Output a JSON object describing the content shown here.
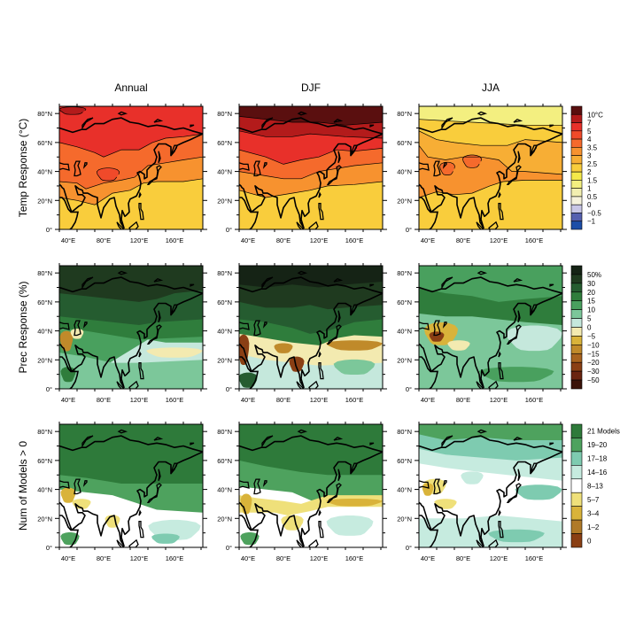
{
  "columns": [
    "Annual",
    "DJF",
    "JJA"
  ],
  "rows": [
    {
      "label": "Temp Response (°C)",
      "colorbar": {
        "labels": [
          "10°C",
          "7",
          "5",
          "4",
          "3.5",
          "3",
          "2.5",
          "2",
          "1.5",
          "1",
          "0.5",
          "0",
          "−0.5",
          "−1"
        ],
        "colors": [
          "#5a0f0f",
          "#b31b1b",
          "#e8302a",
          "#f04a2a",
          "#f56a2c",
          "#f7922f",
          "#f7ae35",
          "#f9cd3c",
          "#f5e94a",
          "#f3ef80",
          "#f2efb0",
          "#f5f2dc",
          "#c8c6e6",
          "#5560b0",
          "#1c4ea8"
        ]
      }
    },
    {
      "label": "Prec Response (%)",
      "colorbar": {
        "labels": [
          "50%",
          "30",
          "20",
          "15",
          "10",
          "5",
          "0",
          "−5",
          "−10",
          "−15",
          "−20",
          "−30",
          "−50"
        ],
        "colors": [
          "#152315",
          "#1f3a1f",
          "#255c30",
          "#2f7d3c",
          "#49a05e",
          "#7cc79a",
          "#c5e8dc",
          "#f3eab0",
          "#d9b33a",
          "#c08a2a",
          "#a8631e",
          "#8a3f14",
          "#6a2510",
          "#3a1208"
        ]
      }
    },
    {
      "label": "Num of Models > 0",
      "colorbar": {
        "labels": [
          "21 Models",
          "19–20",
          "17–18",
          "14–16",
          "8–13",
          "5–7",
          "3–4",
          "1–2",
          "0"
        ],
        "colors": [
          "#2e7a3a",
          "#4ea25e",
          "#7ecbb0",
          "#c6ebdf",
          "#ffffff",
          "#efe07a",
          "#d9b33a",
          "#b07a28",
          "#8a3f14"
        ]
      }
    }
  ],
  "lat_ticks": [
    "0°",
    "20°N",
    "40°N",
    "60°N",
    "80°N"
  ],
  "lat_values": [
    0,
    20,
    40,
    60,
    80
  ],
  "lon_ticks": [
    "40°E",
    "80°E",
    "120°E",
    "160°E"
  ],
  "lon_values": [
    40,
    80,
    120,
    160
  ],
  "lon_range": [
    30,
    192
  ],
  "lat_range": [
    0,
    85
  ]
}
